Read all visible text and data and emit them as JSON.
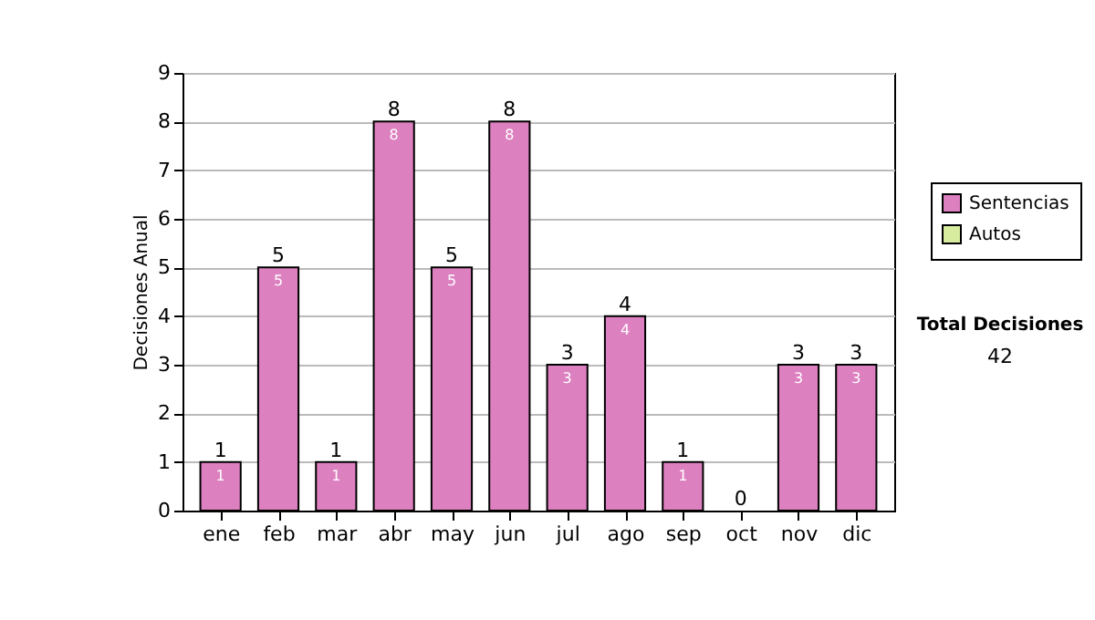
{
  "chart_data": {
    "type": "bar",
    "ylabel": "Decisiones Anual",
    "categories": [
      "ene",
      "feb",
      "mar",
      "abr",
      "may",
      "jun",
      "jul",
      "ago",
      "sep",
      "oct",
      "nov",
      "dic"
    ],
    "series": [
      {
        "name": "Sentencias",
        "color": "#dd80c0",
        "values": [
          1,
          5,
          1,
          8,
          5,
          8,
          3,
          4,
          1,
          0,
          3,
          3
        ],
        "value_labels": [
          "1",
          "5",
          "1",
          "8",
          "5",
          "8",
          "3",
          "4",
          "1",
          null,
          "3",
          "3"
        ]
      },
      {
        "name": "Autos",
        "color": "#d8eca0",
        "values": [
          0,
          0,
          0,
          0,
          0,
          0,
          0,
          0,
          0,
          0,
          0,
          0
        ]
      }
    ],
    "stacked": true,
    "totals": [
      "1",
      "5",
      "1",
      "8",
      "5",
      "8",
      "3",
      "4",
      "1",
      "0",
      "3",
      "3"
    ],
    "ylim": [
      0,
      9
    ],
    "yticks": [
      0,
      1,
      2,
      3,
      4,
      5,
      6,
      7,
      8,
      9
    ],
    "grid": "y",
    "legend": "right",
    "annotations": [
      "Total Decisiones",
      "42"
    ]
  }
}
